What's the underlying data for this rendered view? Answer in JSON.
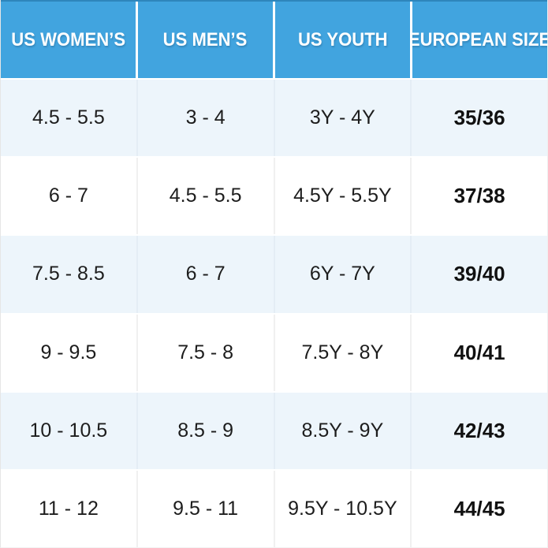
{
  "chart_data": {
    "type": "table",
    "columns": [
      "US WOMEN’S",
      "US MEN’S",
      "US YOUTH",
      "EUROPEAN SIZE"
    ],
    "rows": [
      [
        "4.5 - 5.5",
        "3 - 4",
        "3Y - 4Y",
        "35/36"
      ],
      [
        "6 - 7",
        "4.5 - 5.5",
        "4.5Y - 5.5Y",
        "37/38"
      ],
      [
        "7.5 - 8.5",
        "6 - 7",
        "6Y - 7Y",
        "39/40"
      ],
      [
        "9 - 9.5",
        "7.5 - 8",
        "7.5Y - 8Y",
        "40/41"
      ],
      [
        "10 - 10.5",
        "8.5 - 9",
        "8.5Y - 9Y",
        "42/43"
      ],
      [
        "11 - 12",
        "9.5 - 11",
        "9.5Y - 10.5Y",
        "44/45"
      ]
    ],
    "layout": {
      "header_position": "top",
      "alternating_rows": true,
      "bold_column": "EUROPEAN SIZE",
      "grid": "light vertical dividers"
    }
  },
  "colors": {
    "header_bg": "#41A4DF",
    "header_top_border": "#2E86BC",
    "header_text": "#FFFFFF",
    "row_alt_bg": "#EDF5FB",
    "row_bg": "#FFFFFF",
    "cell_text": "#1D1D1D",
    "eu_size_text": "#111111",
    "divider": "#F0F0F0"
  }
}
